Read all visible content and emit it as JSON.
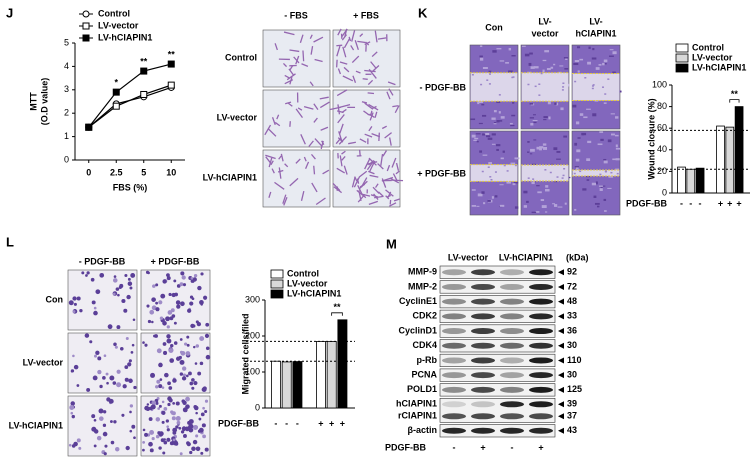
{
  "panel_labels": [
    "J",
    "K",
    "L",
    "M"
  ],
  "chart_data": [
    {
      "type": "line",
      "y_label": [
        "MTT",
        "(O.D value)"
      ],
      "x_label": "FBS (%)",
      "categories": [
        "0",
        "2.5",
        "5",
        "10"
      ],
      "ylim": [
        0,
        5
      ],
      "yticks": [
        0,
        1,
        2,
        3,
        4,
        5
      ],
      "series": [
        {
          "name": "Control",
          "color": "#000000",
          "marker": "circle",
          "fill": "#ffffff",
          "values": [
            1.4,
            2.4,
            2.7,
            3.1
          ]
        },
        {
          "name": "LV-vector",
          "color": "#000000",
          "marker": "square",
          "fill": "#ffffff",
          "values": [
            1.4,
            2.3,
            2.8,
            3.2
          ]
        },
        {
          "name": "LV-hCIAPIN1",
          "color": "#000000",
          "marker": "square",
          "fill": "#000000",
          "values": [
            1.4,
            2.9,
            3.8,
            4.1
          ]
        }
      ],
      "significance": [
        null,
        "*",
        "**",
        "**"
      ]
    },
    {
      "type": "grouped_bar",
      "y_label": "Wound closure (%)",
      "x_label": "PDGF-BB",
      "categories": [
        "-",
        "+"
      ],
      "ylim": [
        0,
        100
      ],
      "yticks": [
        0,
        20,
        40,
        60,
        80,
        100
      ],
      "series": [
        {
          "name": "Control",
          "color": "#ffffff",
          "values": [
            24,
            62
          ]
        },
        {
          "name": "LV-vector",
          "color": "#d9d9d9",
          "values": [
            22,
            61
          ]
        },
        {
          "name": "LV-hCIAPIN1",
          "color": "#000000",
          "values": [
            23,
            80
          ]
        }
      ],
      "reference_lines": [
        58,
        22
      ],
      "significance": [
        null,
        "**"
      ]
    },
    {
      "type": "grouped_bar",
      "y_label": "Migrated cells/filed",
      "x_label": "PDGF-BB",
      "categories": [
        "-",
        "+"
      ],
      "ylim": [
        0,
        300
      ],
      "yticks": [
        0,
        100,
        200,
        300
      ],
      "series": [
        {
          "name": "Control",
          "color": "#ffffff",
          "values": [
            130,
            185
          ]
        },
        {
          "name": "LV-vector",
          "color": "#d9d9d9",
          "values": [
            128,
            185
          ]
        },
        {
          "name": "LV-hCIAPIN1",
          "color": "#000000",
          "values": [
            129,
            245
          ]
        }
      ],
      "reference_lines": [
        185,
        130
      ],
      "significance": [
        null,
        "**"
      ]
    }
  ],
  "mtt_images": {
    "columns": [
      "- FBS",
      "+ FBS"
    ],
    "rows": [
      "Control",
      "LV-vector",
      "LV-hCIAPIN1"
    ]
  },
  "wound_images": {
    "columns": [
      [
        "Con"
      ],
      [
        "LV-",
        "vector"
      ],
      [
        "LV-",
        "hCIAPIN1"
      ]
    ],
    "rows": [
      "- PDGF-BB",
      "+ PDGF-BB"
    ]
  },
  "transwell_images": {
    "columns": [
      "- PDGF-BB",
      "+ PDGF-BB"
    ],
    "rows": [
      "Con",
      "LV-vector",
      "LV-hCIAPIN1"
    ]
  },
  "western_blot": {
    "groups": [
      "LV-vector",
      "LV-hCIAPIN1"
    ],
    "unit": "(kDa)",
    "treatment": "PDGF-BB",
    "lanes": [
      "-",
      "+",
      "-",
      "+"
    ],
    "rows": [
      [
        {
          "name": "MMP-9",
          "kda": 92
        }
      ],
      [
        {
          "name": "MMP-2",
          "kda": 72
        }
      ],
      [
        {
          "name": "CyclinE1",
          "kda": 48
        }
      ],
      [
        {
          "name": "CDK2",
          "kda": 33
        }
      ],
      [
        {
          "name": "CyclinD1",
          "kda": 36
        }
      ],
      [
        {
          "name": "CDK4",
          "kda": 30
        }
      ],
      [
        {
          "name": "p-Rb",
          "kda": 110
        }
      ],
      [
        {
          "name": "PCNA",
          "kda": 30
        }
      ],
      [
        {
          "name": "POLD1",
          "kda": 125
        }
      ],
      [
        {
          "name": "hCIAPIN1",
          "kda": 39
        },
        {
          "name": "rCIAPIN1",
          "kda": 37
        }
      ],
      [
        {
          "name": "β-actin",
          "kda": 43
        }
      ]
    ]
  }
}
